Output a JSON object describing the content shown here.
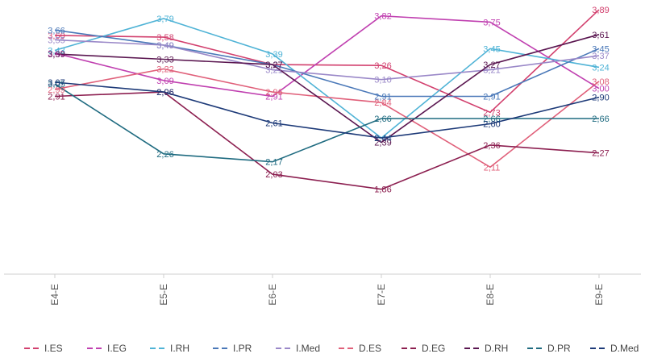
{
  "chart_data": {
    "type": "line",
    "title": "",
    "xlabel": "",
    "ylabel": "",
    "ylim": [
      0.9,
      4.0
    ],
    "grid": false,
    "legend_position": "bottom",
    "categories": [
      "E4-E",
      "E5-E",
      "E6-E",
      "E7-E",
      "E8-E",
      "E9-E"
    ],
    "series": [
      {
        "name": "I.ES",
        "color": "#d2406e",
        "values": [
          3.6,
          3.58,
          3.27,
          3.26,
          2.73,
          3.89
        ]
      },
      {
        "name": "I.EG",
        "color": "#c040b0",
        "values": [
          3.4,
          3.09,
          2.91,
          3.82,
          3.75,
          3.0
        ]
      },
      {
        "name": "I.RH",
        "color": "#4fb3d6",
        "values": [
          3.43,
          3.79,
          3.39,
          2.44,
          3.45,
          3.24
        ]
      },
      {
        "name": "I.PR",
        "color": "#4a78b8",
        "values": [
          3.66,
          3.49,
          3.27,
          2.91,
          2.91,
          3.45
        ]
      },
      {
        "name": "I.Med",
        "color": "#9a88c8",
        "values": [
          3.55,
          3.49,
          3.21,
          3.1,
          3.21,
          3.37
        ]
      },
      {
        "name": "D.ES",
        "color": "#e0607a",
        "values": [
          2.99,
          3.22,
          2.96,
          2.84,
          2.11,
          3.08
        ]
      },
      {
        "name": "D.EG",
        "color": "#8c1f50",
        "values": [
          2.91,
          2.96,
          2.03,
          1.86,
          2.36,
          2.27
        ]
      },
      {
        "name": "D.RH",
        "color": "#5a1650",
        "values": [
          3.39,
          3.33,
          3.27,
          2.39,
          3.27,
          3.61
        ]
      },
      {
        "name": "D.PR",
        "color": "#1f6b80",
        "values": [
          3.05,
          2.26,
          2.17,
          2.66,
          2.66,
          2.66
        ]
      },
      {
        "name": "D.Med",
        "color": "#1d3a78",
        "values": [
          3.07,
          2.96,
          2.61,
          2.44,
          2.6,
          2.9
        ]
      }
    ],
    "data_labels": [
      [
        "3,60",
        "3,58",
        "3,27",
        "3,26",
        "2,73",
        "3,89"
      ],
      [
        "3,40",
        "3,09",
        "2,91",
        "3,82",
        "3,75",
        "3,00"
      ],
      [
        "3,43",
        "3,79",
        "3,39",
        "2,44",
        "3,45",
        "3,24"
      ],
      [
        "3,66",
        "3,49",
        "3,27",
        "2,91",
        "2,91",
        "3,45"
      ],
      [
        "3,55",
        "3,49",
        "3,21",
        "3,10",
        "3,21",
        "3,37"
      ],
      [
        "2,99",
        "3,22",
        "2,96",
        "2,84",
        "2,11",
        "3,08"
      ],
      [
        "2,91",
        "2,96",
        "2,03",
        "1,86",
        "2,36",
        "2,27"
      ],
      [
        "3,39",
        "3,33",
        "3,27",
        "2,39",
        "3,27",
        "3,61"
      ],
      [
        "3,05",
        "2,26",
        "2,17",
        "2,66",
        "2,66",
        "2,66"
      ],
      [
        "3,07",
        "2,96",
        "2,61",
        "2,44",
        "2,60",
        "2,90"
      ]
    ]
  }
}
